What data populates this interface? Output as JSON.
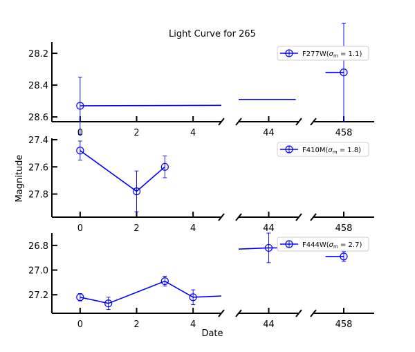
{
  "chart_data": {
    "type": "line",
    "title": "Light Curve for 265",
    "xlabel": "Date",
    "ylabel": "Magnitude",
    "y_inverted": true,
    "broken_x_axis": true,
    "x_segments": [
      {
        "range": [
          -1,
          5
        ],
        "ticks": [
          0,
          2,
          4
        ]
      },
      {
        "range": [
          43,
          45
        ],
        "ticks": [
          44
        ]
      },
      {
        "range": [
          457,
          459
        ],
        "ticks": [
          458
        ]
      }
    ],
    "color": "#0000ff",
    "marker": "open circle",
    "panels": [
      {
        "legend": "F277W",
        "sigma": "1.1",
        "ylim": [
          28.63,
          28.13
        ],
        "yticks": [
          28.2,
          28.4,
          28.6
        ],
        "ytick_labels": [
          "28.2",
          "28.4",
          "28.6"
        ],
        "points": [
          {
            "x": 0,
            "y": 28.53,
            "err": 0.18
          },
          {
            "x": 458,
            "y": 28.32,
            "err": 0.31
          }
        ],
        "line": [
          [
            0,
            28.53
          ],
          [
            5,
            28.527
          ],
          [
            43,
            28.49
          ],
          [
            44.9,
            28.49
          ],
          [
            457.4,
            28.32
          ],
          [
            458,
            28.32
          ]
        ]
      },
      {
        "legend": "F410M",
        "sigma": "1.8",
        "ylim": [
          27.97,
          27.39
        ],
        "yticks": [
          27.4,
          27.6,
          27.8
        ],
        "ytick_labels": [
          "27.4",
          "27.6",
          "27.8"
        ],
        "points": [
          {
            "x": 0,
            "y": 27.48,
            "err": 0.07
          },
          {
            "x": 2,
            "y": 27.78,
            "err": 0.15
          },
          {
            "x": 3,
            "y": 27.6,
            "err": 0.08
          }
        ],
        "line": [
          [
            0,
            27.48
          ],
          [
            2,
            27.78
          ],
          [
            3,
            27.6
          ]
        ]
      },
      {
        "legend": "F444W",
        "sigma": "2.7",
        "ylim": [
          27.35,
          26.7
        ],
        "yticks": [
          26.8,
          27.0,
          27.2
        ],
        "ytick_labels": [
          "26.8",
          "27.0",
          "27.2"
        ],
        "points": [
          {
            "x": 0,
            "y": 27.22,
            "err": 0.03
          },
          {
            "x": 1,
            "y": 27.27,
            "err": 0.05
          },
          {
            "x": 3,
            "y": 27.09,
            "err": 0.04
          },
          {
            "x": 4,
            "y": 27.22,
            "err": 0.06
          },
          {
            "x": 44,
            "y": 26.82,
            "err": 0.12
          },
          {
            "x": 458,
            "y": 26.89,
            "err": 0.04
          }
        ],
        "line": [
          [
            0,
            27.22
          ],
          [
            1,
            27.27
          ],
          [
            3,
            27.09
          ],
          [
            4,
            27.22
          ],
          [
            5,
            27.21
          ],
          [
            43,
            26.83
          ],
          [
            44,
            26.82
          ],
          [
            44.9,
            26.82
          ],
          [
            457.4,
            26.89
          ],
          [
            458,
            26.89
          ]
        ]
      }
    ]
  }
}
